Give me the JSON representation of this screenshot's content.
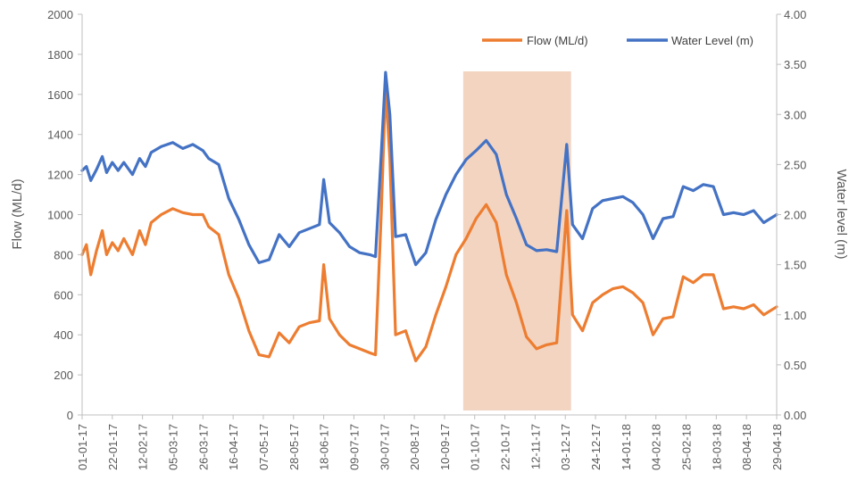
{
  "chart_data": {
    "type": "line",
    "ylabel": "Flow (ML/d)",
    "y2label": "Water level (m)",
    "ylim": [
      0,
      2000
    ],
    "y2lim": [
      0,
      4
    ],
    "yticks": [
      "0",
      "200",
      "400",
      "600",
      "800",
      "1000",
      "1200",
      "1400",
      "1600",
      "1800",
      "2000"
    ],
    "y2ticks": [
      "0.00",
      "0.50",
      "1.00",
      "1.50",
      "2.00",
      "2.50",
      "3.00",
      "3.50",
      "4.00"
    ],
    "xticks": [
      "01-01-17",
      "22-01-17",
      "12-02-17",
      "05-03-17",
      "26-03-17",
      "16-04-17",
      "07-05-17",
      "28-05-17",
      "18-06-17",
      "09-07-17",
      "30-07-17",
      "20-08-17",
      "10-09-17",
      "01-10-17",
      "22-10-17",
      "12-11-17",
      "03-12-17",
      "24-12-17",
      "14-01-18",
      "04-02-18",
      "25-02-18",
      "18-03-18",
      "08-04-18",
      "29-04-18"
    ],
    "highlight": {
      "from": "2017-09-23",
      "to": "2017-12-07",
      "color": "#f2d4c0"
    },
    "grid": false,
    "legend_position": "top-right",
    "series": [
      {
        "name": "Flow (ML/d)",
        "axis": "left",
        "color": "#ed7d31",
        "points": [
          [
            "2017-01-01",
            800
          ],
          [
            "2017-01-04",
            850
          ],
          [
            "2017-01-07",
            700
          ],
          [
            "2017-01-11",
            820
          ],
          [
            "2017-01-15",
            920
          ],
          [
            "2017-01-18",
            800
          ],
          [
            "2017-01-22",
            860
          ],
          [
            "2017-01-26",
            820
          ],
          [
            "2017-01-30",
            880
          ],
          [
            "2017-02-05",
            800
          ],
          [
            "2017-02-10",
            920
          ],
          [
            "2017-02-14",
            850
          ],
          [
            "2017-02-18",
            960
          ],
          [
            "2017-02-25",
            1000
          ],
          [
            "2017-03-05",
            1030
          ],
          [
            "2017-03-12",
            1010
          ],
          [
            "2017-03-19",
            1000
          ],
          [
            "2017-03-26",
            1000
          ],
          [
            "2017-03-30",
            940
          ],
          [
            "2017-04-06",
            900
          ],
          [
            "2017-04-13",
            700
          ],
          [
            "2017-04-20",
            580
          ],
          [
            "2017-04-27",
            420
          ],
          [
            "2017-05-04",
            300
          ],
          [
            "2017-05-11",
            290
          ],
          [
            "2017-05-18",
            410
          ],
          [
            "2017-05-25",
            360
          ],
          [
            "2017-06-01",
            440
          ],
          [
            "2017-06-08",
            460
          ],
          [
            "2017-06-15",
            470
          ],
          [
            "2017-06-18",
            750
          ],
          [
            "2017-06-22",
            480
          ],
          [
            "2017-06-29",
            400
          ],
          [
            "2017-07-06",
            350
          ],
          [
            "2017-07-13",
            330
          ],
          [
            "2017-07-20",
            310
          ],
          [
            "2017-07-24",
            300
          ],
          [
            "2017-07-28",
            1000
          ],
          [
            "2017-07-31",
            1640
          ],
          [
            "2017-08-03",
            1280
          ],
          [
            "2017-08-07",
            400
          ],
          [
            "2017-08-14",
            420
          ],
          [
            "2017-08-21",
            270
          ],
          [
            "2017-08-28",
            340
          ],
          [
            "2017-09-04",
            500
          ],
          [
            "2017-09-11",
            640
          ],
          [
            "2017-09-18",
            800
          ],
          [
            "2017-09-25",
            880
          ],
          [
            "2017-10-02",
            980
          ],
          [
            "2017-10-09",
            1050
          ],
          [
            "2017-10-16",
            960
          ],
          [
            "2017-10-23",
            700
          ],
          [
            "2017-10-30",
            560
          ],
          [
            "2017-11-06",
            390
          ],
          [
            "2017-11-13",
            330
          ],
          [
            "2017-11-20",
            350
          ],
          [
            "2017-11-27",
            360
          ],
          [
            "2017-12-04",
            1020
          ],
          [
            "2017-12-08",
            500
          ],
          [
            "2017-12-15",
            420
          ],
          [
            "2017-12-22",
            560
          ],
          [
            "2017-12-29",
            600
          ],
          [
            "2018-01-05",
            630
          ],
          [
            "2018-01-12",
            640
          ],
          [
            "2018-01-19",
            610
          ],
          [
            "2018-01-26",
            560
          ],
          [
            "2018-02-02",
            400
          ],
          [
            "2018-02-09",
            480
          ],
          [
            "2018-02-16",
            490
          ],
          [
            "2018-02-23",
            690
          ],
          [
            "2018-03-02",
            660
          ],
          [
            "2018-03-09",
            700
          ],
          [
            "2018-03-16",
            700
          ],
          [
            "2018-03-23",
            530
          ],
          [
            "2018-03-30",
            540
          ],
          [
            "2018-04-06",
            530
          ],
          [
            "2018-04-13",
            550
          ],
          [
            "2018-04-20",
            500
          ],
          [
            "2018-04-29",
            540
          ]
        ]
      },
      {
        "name": "Water Level (m)",
        "axis": "right",
        "color": "#4472c4",
        "points": [
          [
            "2017-01-01",
            2.44
          ],
          [
            "2017-01-04",
            2.48
          ],
          [
            "2017-01-07",
            2.34
          ],
          [
            "2017-01-11",
            2.45
          ],
          [
            "2017-01-15",
            2.58
          ],
          [
            "2017-01-18",
            2.42
          ],
          [
            "2017-01-22",
            2.52
          ],
          [
            "2017-01-26",
            2.44
          ],
          [
            "2017-01-30",
            2.52
          ],
          [
            "2017-02-05",
            2.4
          ],
          [
            "2017-02-10",
            2.56
          ],
          [
            "2017-02-14",
            2.48
          ],
          [
            "2017-02-18",
            2.62
          ],
          [
            "2017-02-25",
            2.68
          ],
          [
            "2017-03-05",
            2.72
          ],
          [
            "2017-03-12",
            2.66
          ],
          [
            "2017-03-19",
            2.7
          ],
          [
            "2017-03-26",
            2.64
          ],
          [
            "2017-03-30",
            2.56
          ],
          [
            "2017-04-06",
            2.5
          ],
          [
            "2017-04-13",
            2.16
          ],
          [
            "2017-04-20",
            1.95
          ],
          [
            "2017-04-27",
            1.7
          ],
          [
            "2017-05-04",
            1.52
          ],
          [
            "2017-05-11",
            1.55
          ],
          [
            "2017-05-18",
            1.8
          ],
          [
            "2017-05-25",
            1.68
          ],
          [
            "2017-06-01",
            1.82
          ],
          [
            "2017-06-08",
            1.86
          ],
          [
            "2017-06-15",
            1.9
          ],
          [
            "2017-06-18",
            2.35
          ],
          [
            "2017-06-22",
            1.92
          ],
          [
            "2017-06-29",
            1.82
          ],
          [
            "2017-07-06",
            1.68
          ],
          [
            "2017-07-13",
            1.62
          ],
          [
            "2017-07-20",
            1.6
          ],
          [
            "2017-07-24",
            1.58
          ],
          [
            "2017-07-28",
            2.6
          ],
          [
            "2017-07-31",
            3.42
          ],
          [
            "2017-08-03",
            3.0
          ],
          [
            "2017-08-07",
            1.78
          ],
          [
            "2017-08-14",
            1.8
          ],
          [
            "2017-08-21",
            1.5
          ],
          [
            "2017-08-28",
            1.62
          ],
          [
            "2017-09-04",
            1.95
          ],
          [
            "2017-09-11",
            2.2
          ],
          [
            "2017-09-18",
            2.4
          ],
          [
            "2017-09-25",
            2.55
          ],
          [
            "2017-10-02",
            2.64
          ],
          [
            "2017-10-09",
            2.74
          ],
          [
            "2017-10-16",
            2.6
          ],
          [
            "2017-10-23",
            2.2
          ],
          [
            "2017-10-30",
            1.96
          ],
          [
            "2017-11-06",
            1.7
          ],
          [
            "2017-11-13",
            1.64
          ],
          [
            "2017-11-20",
            1.65
          ],
          [
            "2017-11-27",
            1.63
          ],
          [
            "2017-12-04",
            2.7
          ],
          [
            "2017-12-08",
            1.9
          ],
          [
            "2017-12-15",
            1.76
          ],
          [
            "2017-12-22",
            2.06
          ],
          [
            "2017-12-29",
            2.14
          ],
          [
            "2018-01-05",
            2.16
          ],
          [
            "2018-01-12",
            2.18
          ],
          [
            "2018-01-19",
            2.12
          ],
          [
            "2018-01-26",
            2.0
          ],
          [
            "2018-02-02",
            1.76
          ],
          [
            "2018-02-09",
            1.96
          ],
          [
            "2018-02-16",
            1.98
          ],
          [
            "2018-02-23",
            2.28
          ],
          [
            "2018-03-02",
            2.24
          ],
          [
            "2018-03-09",
            2.3
          ],
          [
            "2018-03-16",
            2.28
          ],
          [
            "2018-03-23",
            2.0
          ],
          [
            "2018-03-30",
            2.02
          ],
          [
            "2018-04-06",
            2.0
          ],
          [
            "2018-04-13",
            2.04
          ],
          [
            "2018-04-20",
            1.92
          ],
          [
            "2018-04-29",
            2.0
          ]
        ]
      }
    ]
  }
}
